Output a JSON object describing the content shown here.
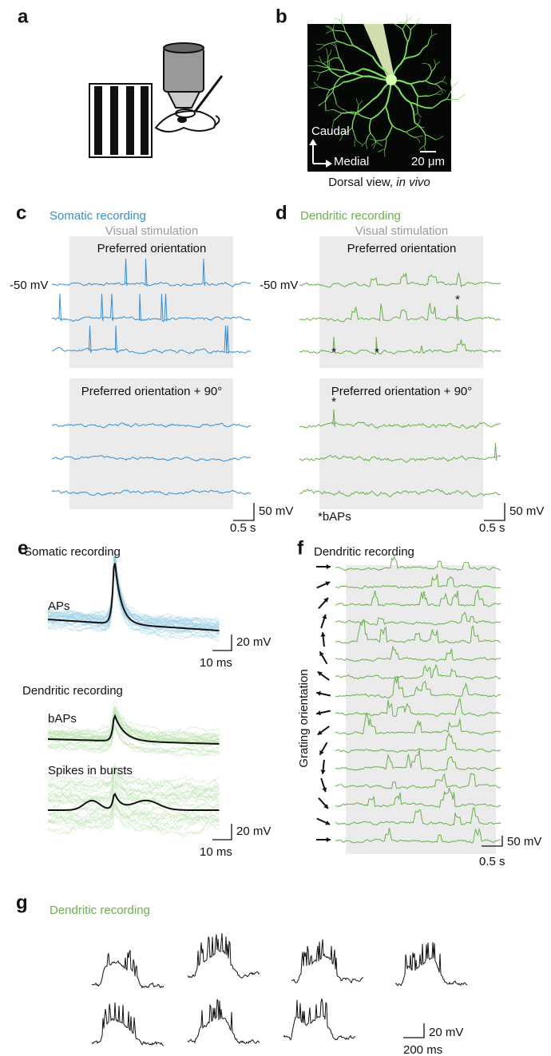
{
  "panels": {
    "a": {
      "label": "a"
    },
    "b": {
      "label": "b",
      "caudal": "Caudal",
      "medial": "Medial",
      "scale_bar": "20 μm",
      "caption": "Dorsal view, ",
      "caption_italic": "in vivo"
    },
    "c": {
      "label": "c",
      "title": "Somatic recording",
      "stimulus": "Visual stimulation",
      "condition_1": "Preferred orientation",
      "resting_potential": "-50 mV",
      "condition_2": "Preferred orientation + 90°",
      "scale_v": "50 mV",
      "scale_t": "0.5 s"
    },
    "d": {
      "label": "d",
      "title": "Dendritic recording",
      "stimulus": "Visual stimulation",
      "condition_1": "Preferred orientation",
      "resting_potential": "-50 mV",
      "condition_2": "Preferred orientation + 90°",
      "markers": [
        "*",
        "*",
        "*",
        "*"
      ],
      "footnote": "*bAPs",
      "scale_v": "50 mV",
      "scale_t": "0.5 s"
    },
    "e": {
      "label": "e",
      "somatic_title": "Somatic recording",
      "aps": "APs",
      "scale_v_1": "20 mV",
      "scale_t_1": "10 ms",
      "dendritic_title": "Dendritic recording",
      "baps": "bAPs",
      "bursts": "Spikes in bursts",
      "scale_v_2": "20 mV",
      "scale_t_2": "10 ms"
    },
    "f": {
      "label": "f",
      "title": "Dendritic recording",
      "y_label": "Grating orientation",
      "scale_v": "50 mV",
      "scale_t": "0.5 s"
    },
    "g": {
      "label": "g",
      "title": "Dendritic recording",
      "scale_v": "20 mV",
      "scale_t": "200 ms"
    }
  }
}
